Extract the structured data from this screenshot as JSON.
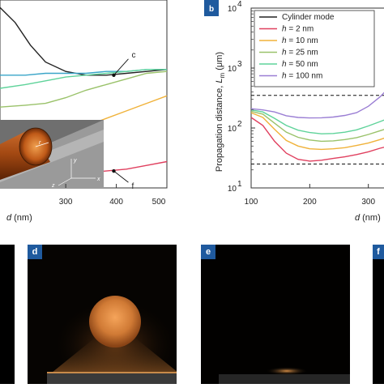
{
  "chart_data": [
    {
      "type": "line",
      "panel_label": "",
      "xlabel_var": "d",
      "xlabel_unit": "(nm)",
      "x_ticks": [
        "300",
        "400",
        "500"
      ],
      "xlim": [
        170,
        500
      ],
      "ylim": [
        0,
        1
      ],
      "series": [
        {
          "label": "c",
          "color": "#222222",
          "x": [
            170,
            200,
            230,
            260,
            300,
            340,
            380,
            420,
            460,
            500
          ],
          "y": [
            0.96,
            0.88,
            0.76,
            0.67,
            0.62,
            0.6,
            0.6,
            0.61,
            0.62,
            0.63
          ]
        },
        {
          "label": "",
          "color": "#3aa5c8",
          "x": [
            170,
            220,
            260,
            300,
            340,
            380,
            420,
            460,
            500
          ],
          "y": [
            0.6,
            0.6,
            0.61,
            0.61,
            0.61,
            0.62,
            0.62,
            0.63,
            0.63
          ]
        },
        {
          "label": "",
          "color": "#5fd39a",
          "x": [
            170,
            220,
            260,
            300,
            340,
            380,
            420,
            460,
            500
          ],
          "y": [
            0.53,
            0.55,
            0.57,
            0.59,
            0.6,
            0.61,
            0.62,
            0.63,
            0.63
          ]
        },
        {
          "label": "",
          "color": "#9ac26a",
          "x": [
            170,
            220,
            260,
            300,
            340,
            380,
            420,
            460,
            500
          ],
          "y": [
            0.43,
            0.44,
            0.45,
            0.48,
            0.52,
            0.55,
            0.58,
            0.61,
            0.62
          ]
        },
        {
          "label": "",
          "color": "#f0b23a",
          "x": [
            170,
            220,
            260,
            300,
            340,
            380,
            420,
            460,
            500
          ],
          "y": [
            0.22,
            0.24,
            0.26,
            0.29,
            0.33,
            0.37,
            0.41,
            0.45,
            0.49
          ]
        },
        {
          "label": "f",
          "color": "#e0405f",
          "x": [
            170,
            220,
            260,
            300,
            340,
            380,
            420,
            460,
            500
          ],
          "y": [
            0.04,
            0.05,
            0.06,
            0.07,
            0.08,
            0.09,
            0.1,
            0.12,
            0.14
          ]
        }
      ]
    },
    {
      "type": "line",
      "panel_label": "b",
      "xlabel_var": "d",
      "xlabel_unit": "(nm)",
      "ylabel_text": "Propagation distance, ",
      "ylabel_var": "L",
      "ylabel_sub": "m",
      "ylabel_unit": " (μm)",
      "x_ticks": [
        "100",
        "200",
        "300"
      ],
      "y_ticks_base": "10",
      "y_ticks_exp": [
        "1",
        "2",
        "3",
        "4"
      ],
      "xlim": [
        100,
        335
      ],
      "ylim": [
        10,
        10000
      ],
      "yscale": "log",
      "legend": [
        {
          "label": "Cylinder mode",
          "color": "#222222"
        },
        {
          "var": "h",
          "value": " = 2 nm",
          "color": "#e0405f"
        },
        {
          "var": "h",
          "value": " = 10 nm",
          "color": "#f0b23a"
        },
        {
          "var": "h",
          "value": " = 25 nm",
          "color": "#9ac26a"
        },
        {
          "var": "h",
          "value": " = 50 nm",
          "color": "#5fd39a"
        },
        {
          "var": "h",
          "value": " = 100 nm",
          "color": "#9b7fd4"
        }
      ],
      "dashed_levels": [
        350,
        25
      ],
      "series": [
        {
          "name": "h = 2 nm",
          "color": "#e0405f",
          "x": [
            100,
            120,
            140,
            160,
            180,
            200,
            220,
            240,
            260,
            280,
            300,
            320,
            335
          ],
          "y": [
            150,
            110,
            60,
            38,
            30,
            28,
            29,
            31,
            33,
            36,
            40,
            46,
            50
          ]
        },
        {
          "name": "h = 10 nm",
          "color": "#f0b23a",
          "x": [
            100,
            120,
            140,
            160,
            180,
            200,
            220,
            240,
            260,
            280,
            300,
            320,
            335
          ],
          "y": [
            180,
            150,
            95,
            62,
            50,
            45,
            44,
            45,
            47,
            51,
            56,
            64,
            72
          ]
        },
        {
          "name": "h = 25 nm",
          "color": "#9ac26a",
          "x": [
            100,
            120,
            140,
            160,
            180,
            200,
            220,
            240,
            260,
            280,
            300,
            320,
            335
          ],
          "y": [
            190,
            170,
            120,
            85,
            70,
            63,
            60,
            61,
            64,
            69,
            78,
            90,
            100
          ]
        },
        {
          "name": "h = 50 nm",
          "color": "#5fd39a",
          "x": [
            100,
            120,
            140,
            160,
            180,
            200,
            220,
            240,
            260,
            280,
            300,
            320,
            335
          ],
          "y": [
            200,
            185,
            145,
            110,
            92,
            84,
            80,
            81,
            85,
            93,
            108,
            128,
            145
          ]
        },
        {
          "name": "h = 100 nm",
          "color": "#9b7fd4",
          "x": [
            100,
            120,
            140,
            160,
            180,
            200,
            220,
            240,
            260,
            280,
            300,
            320,
            335
          ],
          "y": [
            210,
            200,
            185,
            160,
            150,
            147,
            148,
            152,
            162,
            180,
            230,
            330,
            470
          ]
        }
      ]
    }
  ],
  "inset_labels": {
    "a": "r",
    "b": "x",
    "c": "z",
    "d": "y"
  },
  "image_panels": [
    {
      "label": "d"
    },
    {
      "label": "e"
    },
    {
      "label": "f"
    }
  ]
}
